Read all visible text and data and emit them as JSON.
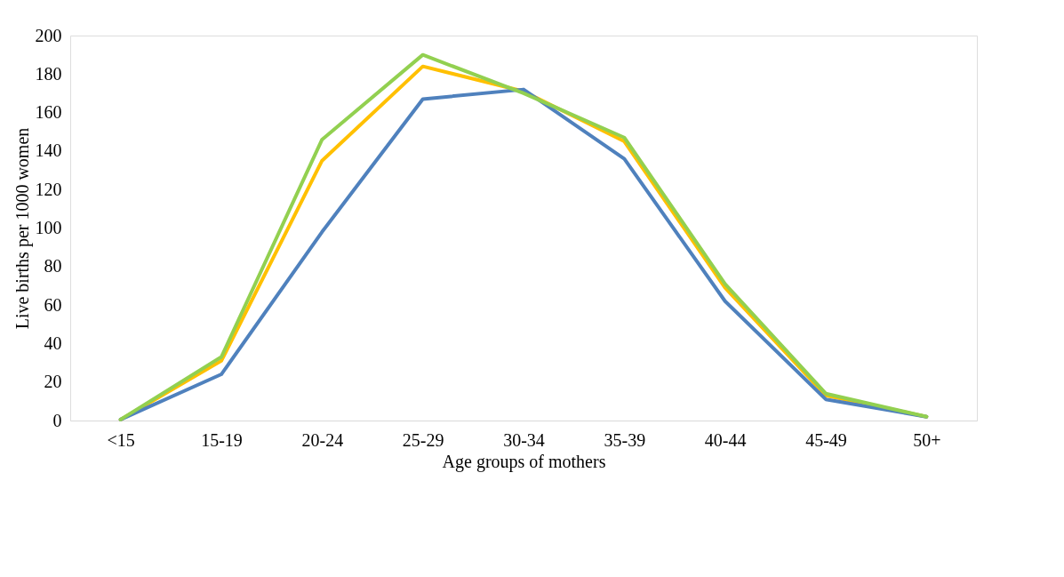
{
  "chart_data": {
    "type": "line",
    "xlabel": "Age groups of mothers",
    "ylabel": "Live births per 1000 women",
    "categories": [
      "<15",
      "15-19",
      "20-24",
      "25-29",
      "30-34",
      "35-39",
      "40-44",
      "45-49",
      "50+"
    ],
    "series": [
      {
        "color": "#ffc000",
        "values": [
          0.5,
          31,
          135,
          184,
          171,
          145,
          69,
          13,
          2
        ]
      },
      {
        "color": "#4f81bd",
        "values": [
          0.5,
          24,
          98,
          167,
          172,
          136,
          62,
          11,
          2
        ]
      },
      {
        "color": "#92d050",
        "values": [
          0.5,
          33,
          146,
          190,
          170,
          147,
          71,
          14,
          2
        ]
      }
    ],
    "ylim": [
      0,
      200
    ],
    "yticks": [
      0,
      20,
      40,
      60,
      80,
      100,
      120,
      140,
      160,
      180,
      200
    ],
    "grid": false,
    "marker": "none",
    "line_style": "solid"
  }
}
